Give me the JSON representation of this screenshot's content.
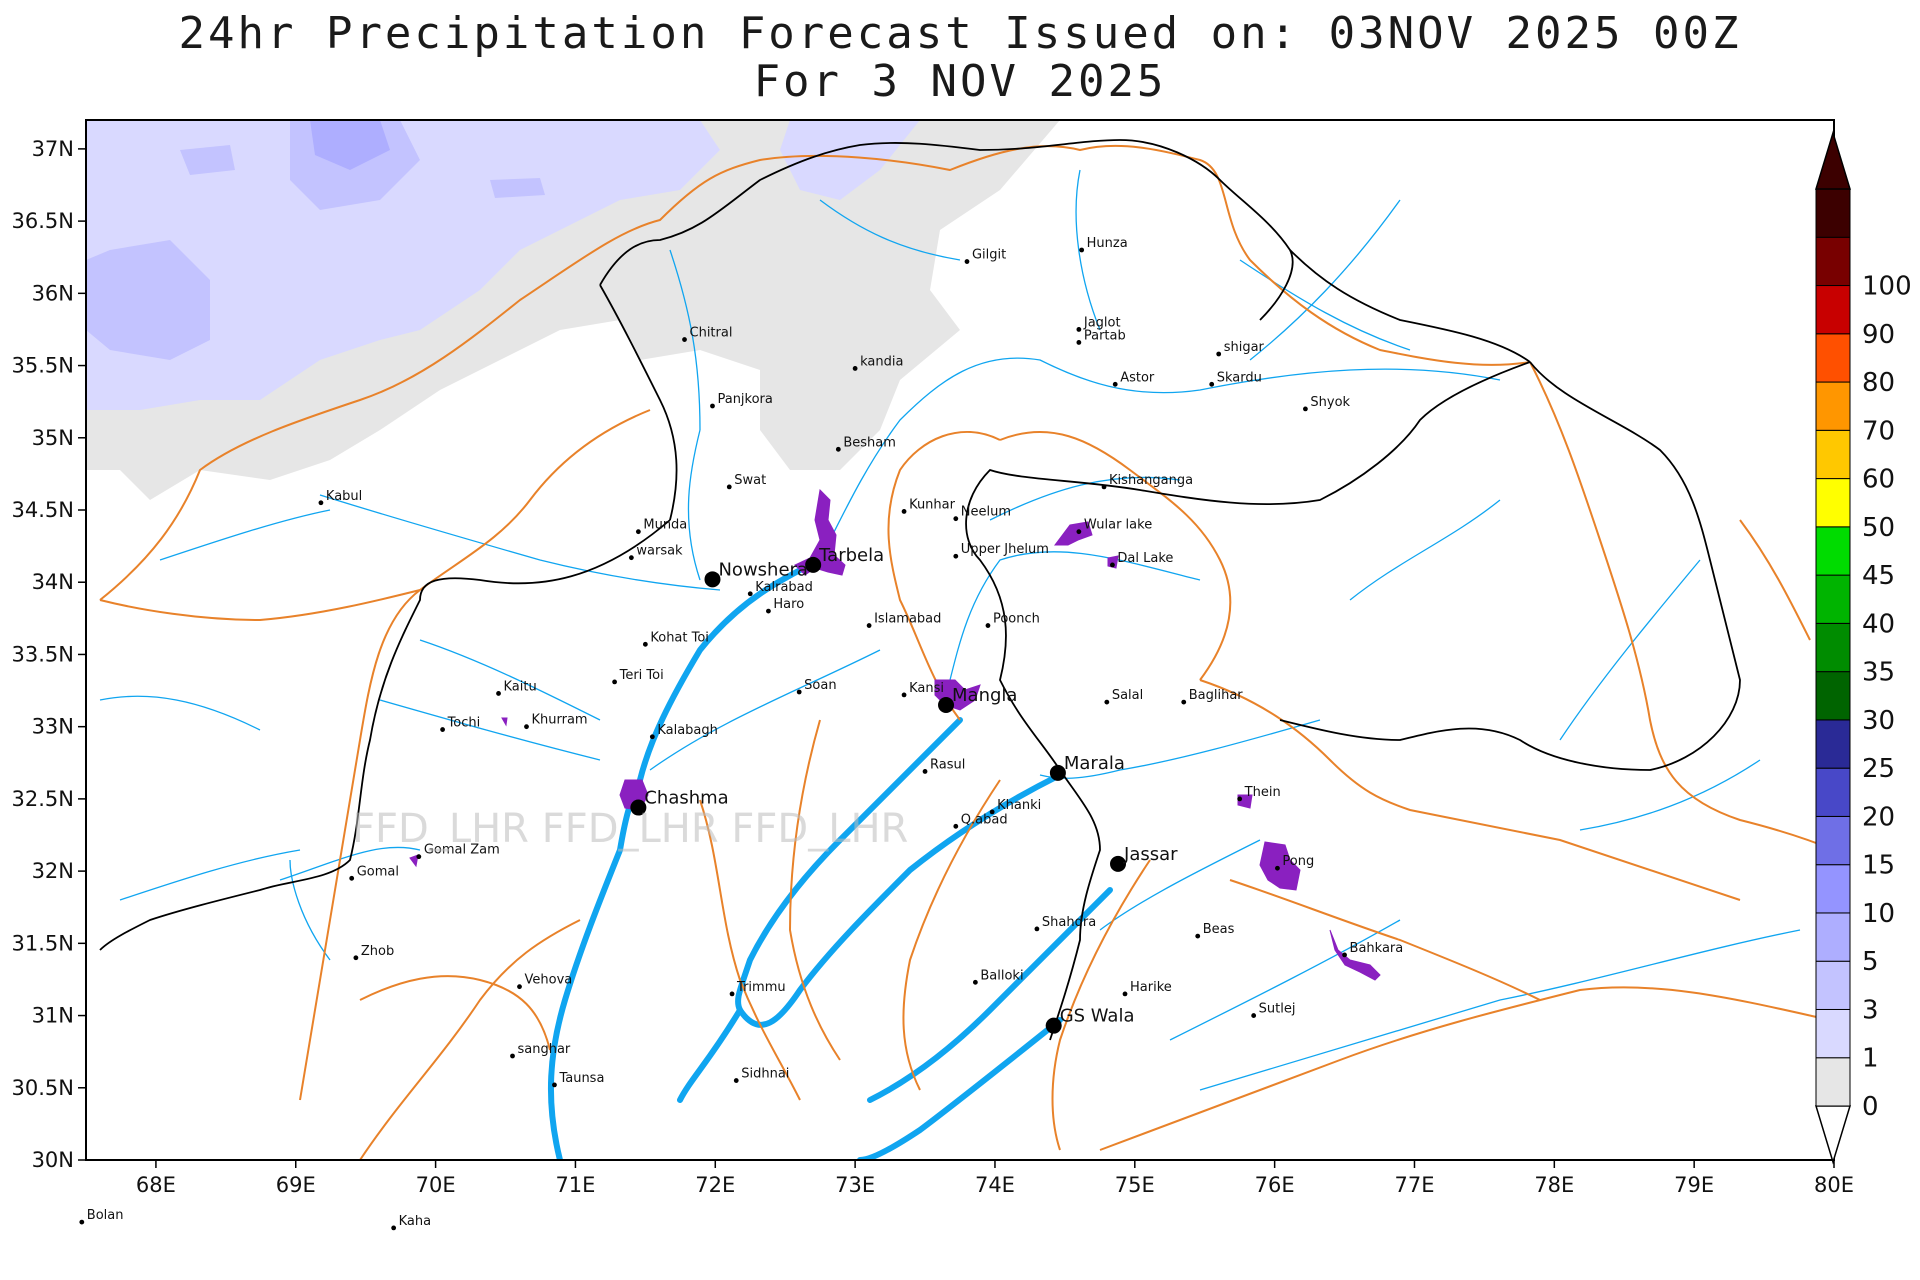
{
  "title_line1": "24hr Precipitation Forecast Issued on:  03NOV 2025 00Z",
  "title_line2": "For 3 NOV 2025",
  "watermark": "FFD_LHR  FFD_LHR  FFD_LHR",
  "lat_labels": [
    "37N",
    "36.5N",
    "36N",
    "35.5N",
    "35N",
    "34.5N",
    "34N",
    "33.5N",
    "33N",
    "32.5N",
    "32N",
    "31.5N",
    "31N",
    "30.5N",
    "30N"
  ],
  "lon_labels": [
    "68E",
    "69E",
    "70E",
    "71E",
    "72E",
    "73E",
    "74E",
    "75E",
    "76E",
    "77E",
    "78E",
    "79E",
    "80E"
  ],
  "legend": {
    "levels": [
      "0",
      "1",
      "3",
      "5",
      "10",
      "15",
      "20",
      "25",
      "30",
      "35",
      "40",
      "45",
      "50",
      "60",
      "70",
      "80",
      "90",
      "100"
    ],
    "colors": [
      "#e6e6e6",
      "#d9d9ff",
      "#c3c3ff",
      "#aeaeff",
      "#9494ff",
      "#6f6fe6",
      "#4848c8",
      "#2a2a96",
      "#006400",
      "#008c00",
      "#00b400",
      "#00dc00",
      "#ffff00",
      "#ffc800",
      "#ff9600",
      "#ff5000",
      "#c80000",
      "#780000",
      "#3c0000"
    ]
  },
  "places": [
    {
      "name": "Gilgit",
      "lon": 73.8,
      "lat": 36.22
    },
    {
      "name": "Hunza",
      "lon": 74.62,
      "lat": 36.3
    },
    {
      "name": "Chitral",
      "lon": 71.78,
      "lat": 35.68
    },
    {
      "name": "Jaglot",
      "lon": 74.6,
      "lat": 35.75
    },
    {
      "name": "Partab",
      "lon": 74.6,
      "lat": 35.66
    },
    {
      "name": "shigar",
      "lon": 75.6,
      "lat": 35.58
    },
    {
      "name": "kandia",
      "lon": 73.0,
      "lat": 35.48
    },
    {
      "name": "Astor",
      "lon": 74.86,
      "lat": 35.37
    },
    {
      "name": "Skardu",
      "lon": 75.55,
      "lat": 35.37
    },
    {
      "name": "Panjkora",
      "lon": 71.98,
      "lat": 35.22
    },
    {
      "name": "Shyok",
      "lon": 76.22,
      "lat": 35.2
    },
    {
      "name": "Besham",
      "lon": 72.88,
      "lat": 34.92
    },
    {
      "name": "Swat",
      "lon": 72.1,
      "lat": 34.66
    },
    {
      "name": "Kishanganga",
      "lon": 74.78,
      "lat": 34.66
    },
    {
      "name": "Kabul",
      "lon": 69.18,
      "lat": 34.55
    },
    {
      "name": "Kunhar",
      "lon": 73.35,
      "lat": 34.49
    },
    {
      "name": "Neelum",
      "lon": 73.72,
      "lat": 34.44
    },
    {
      "name": "Munda",
      "lon": 71.45,
      "lat": 34.35
    },
    {
      "name": "Wular lake",
      "lon": 74.6,
      "lat": 34.35
    },
    {
      "name": "Upper Jhelum",
      "lon": 73.72,
      "lat": 34.18
    },
    {
      "name": "warsak",
      "lon": 71.4,
      "lat": 34.17
    },
    {
      "name": "Dal Lake",
      "lon": 74.84,
      "lat": 34.12
    },
    {
      "name": "Kalabagh",
      "lon": 71.55,
      "lat": 32.93
    },
    {
      "name": "Kalrabad",
      "lon": 72.25,
      "lat": 33.92
    },
    {
      "name": "Haro",
      "lon": 72.38,
      "lat": 33.8
    },
    {
      "name": "Islamabad",
      "lon": 73.1,
      "lat": 33.7
    },
    {
      "name": "Poonch",
      "lon": 73.95,
      "lat": 33.7
    },
    {
      "name": "Kohat Toi",
      "lon": 71.5,
      "lat": 33.57
    },
    {
      "name": "Teri Toi",
      "lon": 71.28,
      "lat": 33.31
    },
    {
      "name": "Soan",
      "lon": 72.6,
      "lat": 33.24
    },
    {
      "name": "Kaitu",
      "lon": 70.45,
      "lat": 33.23
    },
    {
      "name": "Kansi",
      "lon": 73.35,
      "lat": 33.22
    },
    {
      "name": "Salal",
      "lon": 74.8,
      "lat": 33.17
    },
    {
      "name": "Baglihar",
      "lon": 75.35,
      "lat": 33.17
    },
    {
      "name": "Khurram",
      "lon": 70.65,
      "lat": 33.0
    },
    {
      "name": "Tochi",
      "lon": 70.05,
      "lat": 32.98
    },
    {
      "name": "Rasul",
      "lon": 73.5,
      "lat": 32.69
    },
    {
      "name": "Thein",
      "lon": 75.75,
      "lat": 32.5
    },
    {
      "name": "Khanki",
      "lon": 73.98,
      "lat": 32.41
    },
    {
      "name": "Q.abad",
      "lon": 73.72,
      "lat": 32.31
    },
    {
      "name": "Gomal Zam",
      "lon": 69.88,
      "lat": 32.1
    },
    {
      "name": "Pong",
      "lon": 76.02,
      "lat": 32.02
    },
    {
      "name": "Gomal",
      "lon": 69.4,
      "lat": 31.95
    },
    {
      "name": "Shahdra",
      "lon": 74.3,
      "lat": 31.6
    },
    {
      "name": "Beas",
      "lon": 75.45,
      "lat": 31.55
    },
    {
      "name": "Zhob",
      "lon": 69.43,
      "lat": 31.4
    },
    {
      "name": "Bahkara",
      "lon": 76.5,
      "lat": 31.42
    },
    {
      "name": "Vehova",
      "lon": 70.6,
      "lat": 31.2
    },
    {
      "name": "Balloki",
      "lon": 73.86,
      "lat": 31.23
    },
    {
      "name": "Trimmu",
      "lon": 72.12,
      "lat": 31.15
    },
    {
      "name": "Harike",
      "lon": 74.93,
      "lat": 31.15
    },
    {
      "name": "Sutlej",
      "lon": 75.85,
      "lat": 31.0
    },
    {
      "name": "sanghar",
      "lon": 70.55,
      "lat": 30.72
    },
    {
      "name": "Sidhnai",
      "lon": 72.15,
      "lat": 30.55
    },
    {
      "name": "Taunsa",
      "lon": 70.85,
      "lat": 30.52
    },
    {
      "name": "Bolan",
      "lon": 67.47,
      "lat": 29.57
    },
    {
      "name": "Kaha",
      "lon": 69.7,
      "lat": 29.53
    }
  ],
  "stations": [
    {
      "name": "Tarbela",
      "lon": 72.7,
      "lat": 34.12
    },
    {
      "name": "Nowshera",
      "lon": 71.98,
      "lat": 34.02
    },
    {
      "name": "Mangla",
      "lon": 73.65,
      "lat": 33.15
    },
    {
      "name": "Marala",
      "lon": 74.45,
      "lat": 32.68
    },
    {
      "name": "Chashma",
      "lon": 71.45,
      "lat": 32.44
    },
    {
      "name": "Jassar",
      "lon": 74.88,
      "lat": 32.05
    },
    {
      "name": "GS Wala",
      "lon": 74.42,
      "lat": 30.93
    }
  ]
}
